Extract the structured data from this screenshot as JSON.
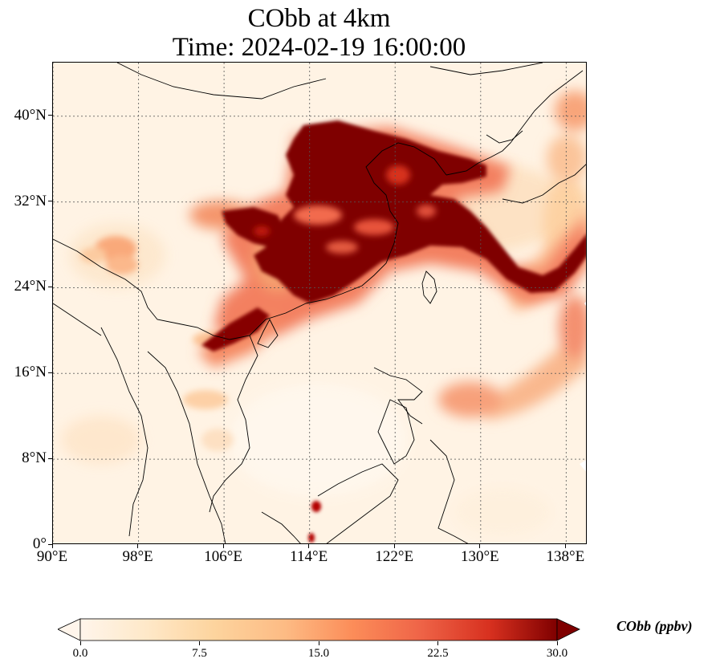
{
  "title_line1": "CObb at 4km",
  "title_line2": "Time: 2024-02-19 16:00:00",
  "map": {
    "lon_range": [
      90,
      140
    ],
    "lat_range": [
      0,
      45
    ],
    "lon_ticks": [
      {
        "value": 90,
        "label": "90°E"
      },
      {
        "value": 98,
        "label": "98°E"
      },
      {
        "value": 106,
        "label": "106°E"
      },
      {
        "value": 114,
        "label": "114°E"
      },
      {
        "value": 122,
        "label": "122°E"
      },
      {
        "value": 130,
        "label": "130°E"
      },
      {
        "value": 138,
        "label": "138°E"
      }
    ],
    "lat_ticks": [
      {
        "value": 0,
        "label": "0°"
      },
      {
        "value": 8,
        "label": "8°N"
      },
      {
        "value": 16,
        "label": "16°N"
      },
      {
        "value": 24,
        "label": "24°N"
      },
      {
        "value": 32,
        "label": "32°N"
      },
      {
        "value": 40,
        "label": "40°N"
      }
    ],
    "gridlines": true
  },
  "colorbar": {
    "label": "CObb (ppbv)",
    "min": 0.0,
    "max": 30.0,
    "ticks": [
      {
        "value": 0,
        "label": "0.0"
      },
      {
        "value": 7.5,
        "label": "7.5"
      },
      {
        "value": 15,
        "label": "15.0"
      },
      {
        "value": 22.5,
        "label": "22.5"
      },
      {
        "value": 30,
        "label": "30.0"
      }
    ],
    "extend": "both",
    "colors": [
      "#fff5eb",
      "#fdd49e",
      "#fdbb84",
      "#fc8d59",
      "#ef6548",
      "#d7301f",
      "#b30000",
      "#7f0000"
    ]
  }
}
